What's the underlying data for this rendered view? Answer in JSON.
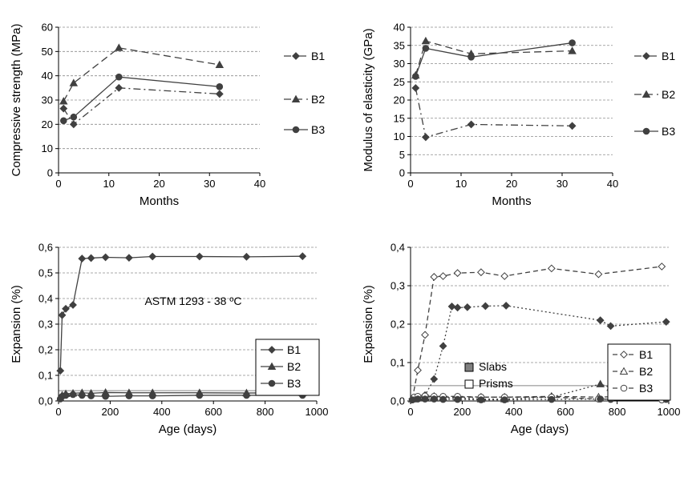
{
  "colors": {
    "grid": "#8c8c8c",
    "axis": "#000000",
    "series": "#404040",
    "open_marker": "#ffffff",
    "threshold": "#a6a6a6"
  },
  "chart_data": [
    {
      "id": "a",
      "type": "line",
      "xlabel": "Months",
      "ylabel": "Compressive strength (MPa)",
      "xlim": [
        0,
        40
      ],
      "ylim": [
        0,
        60
      ],
      "xticks": [
        0,
        10,
        20,
        30,
        40
      ],
      "yticks": [
        0,
        10,
        20,
        30,
        40,
        50,
        60
      ],
      "grid": "horizontal dashed",
      "legend": "right",
      "series": [
        {
          "name": "B1",
          "marker": "diamond",
          "dash": "dashdot",
          "x": [
            1,
            3,
            12,
            32
          ],
          "y": [
            26.5,
            20,
            35,
            32.5
          ]
        },
        {
          "name": "B2",
          "marker": "triangle",
          "dash": "dash",
          "x": [
            1,
            3,
            12,
            32
          ],
          "y": [
            29.5,
            37,
            51.5,
            44.5
          ]
        },
        {
          "name": "B3",
          "marker": "circle",
          "dash": "solid",
          "x": [
            1,
            3,
            12,
            32
          ],
          "y": [
            21.5,
            23,
            39.5,
            35.5
          ]
        }
      ]
    },
    {
      "id": "b",
      "type": "line",
      "xlabel": "Months",
      "ylabel": "Modulus of elasticity (GPa)",
      "xlim": [
        0,
        40
      ],
      "ylim": [
        0,
        40
      ],
      "xticks": [
        0,
        10,
        20,
        30,
        40
      ],
      "yticks": [
        0,
        5,
        10,
        15,
        20,
        25,
        30,
        35,
        40
      ],
      "grid": "horizontal dashed",
      "legend": "right",
      "series": [
        {
          "name": "B1",
          "marker": "diamond",
          "dash": "dashdot",
          "x": [
            1,
            3,
            12,
            32
          ],
          "y": [
            23.3,
            9.8,
            13.3,
            12.9
          ]
        },
        {
          "name": "B2",
          "marker": "triangle",
          "dash": "dash",
          "x": [
            1,
            3,
            12,
            32
          ],
          "y": [
            26.8,
            36.2,
            32.7,
            33.5
          ]
        },
        {
          "name": "B3",
          "marker": "circle",
          "dash": "solid",
          "x": [
            1,
            3,
            12,
            32
          ],
          "y": [
            26.5,
            34.2,
            31.8,
            35.7
          ]
        }
      ]
    },
    {
      "id": "c",
      "type": "line",
      "xlabel": "Age (days)",
      "ylabel": "Expansion (%)",
      "annotation": "ASTM 1293 - 38 ºC",
      "xlim": [
        0,
        1000
      ],
      "ylim": [
        0,
        0.6
      ],
      "xticks": [
        0,
        200,
        400,
        600,
        800,
        1000
      ],
      "yticks": [
        0,
        0.1,
        0.2,
        0.3,
        0.4,
        0.5,
        0.6
      ],
      "yticklabels": [
        "0,0",
        "0,1",
        "0,2",
        "0,3",
        "0,4",
        "0,5",
        "0,6"
      ],
      "threshold": 0.04,
      "grid": "horizontal dashed",
      "legend": "bottom-right",
      "series": [
        {
          "name": "B1",
          "marker": "diamond",
          "dash": "solid",
          "x": [
            7,
            14,
            28,
            56,
            91,
            126,
            182,
            273,
            364,
            546,
            728,
            945
          ],
          "y": [
            0.118,
            0.335,
            0.36,
            0.375,
            0.556,
            0.558,
            0.561,
            0.559,
            0.564,
            0.564,
            0.563,
            0.565
          ]
        },
        {
          "name": "B2",
          "marker": "triangle",
          "dash": "solid",
          "x": [
            7,
            14,
            28,
            56,
            91,
            126,
            182,
            273,
            364,
            546,
            728,
            945
          ],
          "y": [
            0.012,
            0.022,
            0.028,
            0.03,
            0.032,
            0.03,
            0.033,
            0.032,
            0.032,
            0.032,
            0.031,
            0.032
          ]
        },
        {
          "name": "B3",
          "marker": "circle",
          "dash": "solid",
          "x": [
            7,
            14,
            28,
            56,
            91,
            126,
            182,
            273,
            364,
            546,
            728,
            945
          ],
          "y": [
            0.008,
            0.018,
            0.022,
            0.025,
            0.022,
            0.02,
            0.018,
            0.02,
            0.02,
            0.022,
            0.022,
            0.022
          ]
        }
      ]
    },
    {
      "id": "d",
      "type": "line",
      "xlabel": "Age (days)",
      "ylabel": "Expansion (%)",
      "xlim": [
        0,
        1000
      ],
      "ylim": [
        0,
        0.4
      ],
      "xticks": [
        0,
        200,
        400,
        600,
        800,
        1000
      ],
      "yticks": [
        0,
        0.1,
        0.2,
        0.3,
        0.4
      ],
      "yticklabels": [
        "0,0",
        "0,1",
        "0,2",
        "0,3",
        "0,4"
      ],
      "threshold": 0.04,
      "grid": "horizontal dashed",
      "legend": "bottom-right",
      "type_legend": {
        "filled": "Slabs",
        "open": "Prisms"
      },
      "series": [
        {
          "name": "B1",
          "group": "Prisms",
          "marker": "diamond",
          "filled": false,
          "dash": "longdash",
          "x": [
            7,
            28,
            56,
            91,
            126,
            182,
            273,
            364,
            546,
            728,
            973
          ],
          "y": [
            0.005,
            0.08,
            0.172,
            0.323,
            0.325,
            0.333,
            0.335,
            0.325,
            0.345,
            0.33,
            0.35
          ]
        },
        {
          "name": "B1",
          "group": "Slabs",
          "marker": "diamond",
          "filled": true,
          "dash": "dotted",
          "x": [
            7,
            28,
            56,
            91,
            126,
            160,
            182,
            220,
            290,
            370,
            735,
            775,
            990
          ],
          "y": [
            0.005,
            0.01,
            0.015,
            0.057,
            0.143,
            0.246,
            0.243,
            0.244,
            0.247,
            0.248,
            0.21,
            0.195,
            0.206
          ]
        },
        {
          "name": "B2",
          "group": "Prisms",
          "marker": "triangle",
          "filled": false,
          "dash": "longdash",
          "x": [
            7,
            28,
            56,
            91,
            126,
            182,
            273,
            364,
            546,
            728,
            973
          ],
          "y": [
            0.005,
            0.008,
            0.01,
            0.012,
            0.01,
            0.01,
            0.01,
            0.01,
            0.012,
            0.01,
            0.015
          ]
        },
        {
          "name": "B2",
          "group": "Slabs",
          "marker": "triangle",
          "filled": true,
          "dash": "dotted",
          "x": [
            7,
            28,
            56,
            91,
            126,
            182,
            273,
            364,
            546,
            735,
            775,
            990
          ],
          "y": [
            0.005,
            0.008,
            0.01,
            0.01,
            0.008,
            0.008,
            0.005,
            0.005,
            0.01,
            0.044,
            0.035,
            0.03
          ]
        },
        {
          "name": "B3",
          "group": "Prisms",
          "marker": "circle",
          "filled": false,
          "dash": "longdash",
          "x": [
            7,
            14,
            28,
            56,
            91,
            126,
            182,
            273,
            364,
            546,
            728,
            973
          ],
          "y": [
            0.003,
            0.01,
            0.012,
            0.013,
            0.012,
            0.012,
            0.012,
            0.01,
            0.01,
            0.01,
            0.005,
            0.003
          ]
        },
        {
          "name": "B3",
          "group": "Slabs",
          "marker": "circle",
          "filled": true,
          "dash": "dotted",
          "x": [
            7,
            28,
            56,
            91,
            126,
            182,
            273,
            364,
            546,
            735,
            775,
            990
          ],
          "y": [
            0.003,
            0.005,
            0.005,
            0.005,
            0.004,
            0.004,
            0.003,
            0.003,
            0.004,
            0.005,
            0.004,
            0.004
          ]
        }
      ]
    }
  ]
}
